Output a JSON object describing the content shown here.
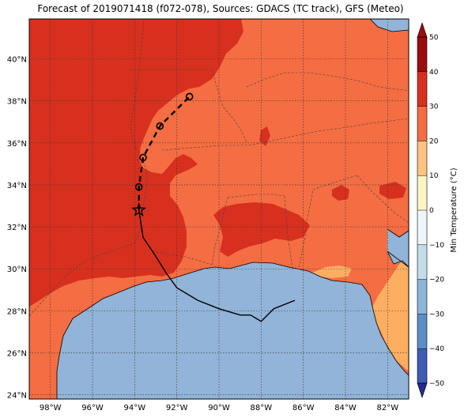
{
  "title": "Forecast of 2019071418 (f072-078), Sources: GDACS (TC track), GFS (Meteo)",
  "map": {
    "extent": {
      "lon_min": -99.0,
      "lon_max": -81.0,
      "lat_min": 23.8,
      "lat_max": 41.9
    },
    "lon_ticks": [
      -98,
      -96,
      -94,
      -92,
      -90,
      -88,
      -86,
      -84,
      -82
    ],
    "lon_labels": [
      "98°W",
      "96°W",
      "94°W",
      "92°W",
      "90°W",
      "88°W",
      "86°W",
      "84°W",
      "82°W"
    ],
    "lat_ticks": [
      24,
      26,
      28,
      30,
      32,
      34,
      36,
      38,
      40
    ],
    "lat_labels": [
      "24°N",
      "26°N",
      "28°N",
      "30°N",
      "32°N",
      "34°N",
      "36°N",
      "38°N",
      "40°N"
    ],
    "colors": {
      "band_30_40": "#d7301f",
      "band_20_30": "#f46d43",
      "band_10_20": "#fdae61",
      "water": "#91b4d8"
    }
  },
  "track": {
    "observed": [
      [
        -86.4,
        28.5
      ],
      [
        -87.4,
        28.1
      ],
      [
        -88.0,
        27.5
      ],
      [
        -88.5,
        27.8
      ],
      [
        -89.0,
        27.8
      ],
      [
        -90.0,
        28.1
      ],
      [
        -91.0,
        28.5
      ],
      [
        -92.0,
        29.1
      ],
      [
        -92.5,
        29.8
      ],
      [
        -93.0,
        30.6
      ],
      [
        -93.6,
        31.5
      ],
      [
        -93.8,
        32.8
      ]
    ],
    "current": [
      -93.8,
      32.8
    ],
    "forecast": [
      [
        -93.8,
        32.8
      ],
      [
        -93.8,
        33.9
      ],
      [
        -93.6,
        35.3
      ],
      [
        -92.8,
        36.8
      ],
      [
        -91.4,
        38.2
      ]
    ]
  },
  "colorbar": {
    "label": "Min Temperature (°C)",
    "min": -50,
    "max": 50,
    "ticks": [
      -50,
      -40,
      -30,
      -20,
      -10,
      0,
      10,
      20,
      30,
      40,
      50
    ],
    "tick_labels": [
      "−50",
      "−40",
      "−30",
      "−20",
      "−10",
      "0",
      "10",
      "20",
      "30",
      "40",
      "50"
    ],
    "colors": [
      "#28288f",
      "#3f5bb5",
      "#5b8ec7",
      "#89b6d9",
      "#c2dcea",
      "#eef5f8",
      "#fdf4c4",
      "#fdc481",
      "#f46d43",
      "#d7301f",
      "#990d0d"
    ]
  }
}
